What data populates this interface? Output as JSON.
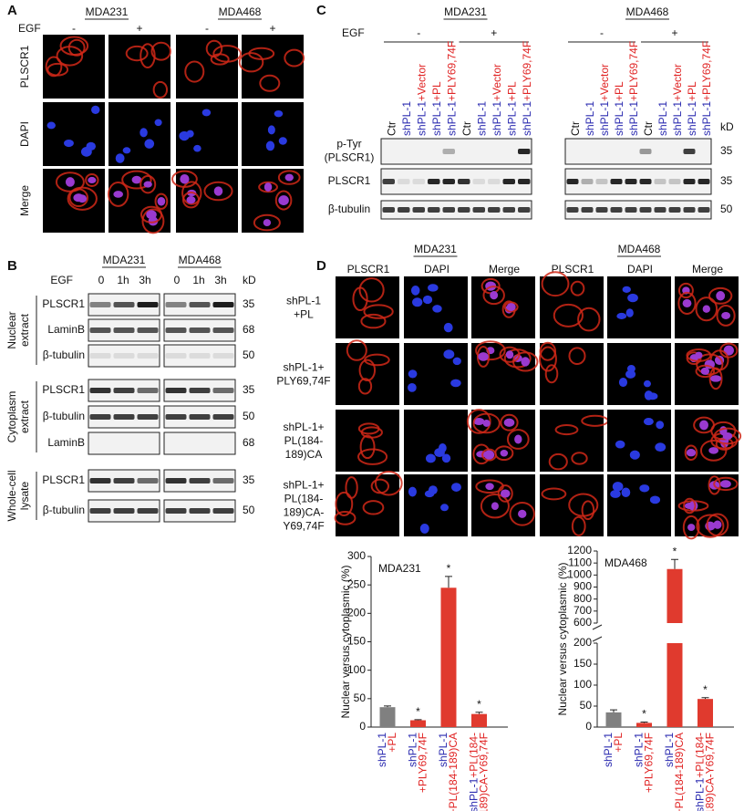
{
  "panel_labels": [
    "A",
    "B",
    "C",
    "D"
  ],
  "panel_a": {
    "cell_lines": [
      "MDA231",
      "MDA468"
    ],
    "egf": "EGF",
    "conditions": [
      "-",
      "+"
    ],
    "rows": [
      "PLSCR1",
      "DAPI",
      "Merge"
    ]
  },
  "panel_b": {
    "cell_lines": [
      "MDA231",
      "MDA468"
    ],
    "egf": "EGF",
    "times": [
      "0",
      "1h",
      "3h"
    ],
    "kd": "kD",
    "groups": [
      {
        "label": [
          "Nuclear",
          "extract"
        ],
        "rows": [
          {
            "name": "PLSCR1",
            "kd": 35
          },
          {
            "name": "LaminB",
            "kd": 68
          },
          {
            "name": "β-tubulin",
            "kd": 50
          }
        ]
      },
      {
        "label": [
          "Cytoplasm",
          "extract"
        ],
        "rows": [
          {
            "name": "PLSCR1",
            "kd": 35
          },
          {
            "name": "β-tubulin",
            "kd": 50
          },
          {
            "name": "LaminB",
            "kd": 68
          }
        ]
      },
      {
        "label": [
          "Whole-cell",
          "lysate"
        ],
        "rows": [
          {
            "name": "PLSCR1",
            "kd": 35
          },
          {
            "name": "β-tubulin",
            "kd": 50
          }
        ]
      }
    ]
  },
  "panel_c": {
    "cell_lines": [
      "MDA231",
      "MDA468"
    ],
    "egf": "EGF",
    "conditions": [
      "-",
      "+"
    ],
    "kd": "kD",
    "lanes": [
      [
        {
          "text": "Ctr",
          "color": "#111111"
        }
      ],
      [
        {
          "text": "shPL-1",
          "color": "#2b2bb0"
        }
      ],
      [
        {
          "text": "shPL-1",
          "color": "#2b2bb0"
        },
        {
          "text": "+Vector",
          "color": "#e02424"
        }
      ],
      [
        {
          "text": "shPL-1",
          "color": "#2b2bb0"
        },
        {
          "text": "+PL",
          "color": "#e02424"
        }
      ],
      [
        {
          "text": "shPL-1",
          "color": "#2b2bb0"
        },
        {
          "text": "+PLY69,74F",
          "color": "#e02424"
        }
      ]
    ],
    "rows": [
      {
        "name": [
          "p-Tyr",
          "(PLSCR1)"
        ],
        "kd": 35
      },
      {
        "name": [
          "PLSCR1"
        ],
        "kd": 35
      },
      {
        "name": [
          "β-tubulin"
        ],
        "kd": 50
      }
    ]
  },
  "panel_d": {
    "cell_lines": [
      "MDA231",
      "MDA468"
    ],
    "stains": [
      "PLSCR1",
      "DAPI",
      "Merge"
    ],
    "rows": [
      [
        "shPL-1",
        "+PL"
      ],
      [
        "shPL-1+",
        "PLY69,74F"
      ],
      [
        "shPL-1+",
        "PL(184-",
        "189)CA"
      ],
      [
        "shPL-1+",
        "PL(184-",
        "189)CA-",
        "Y69,74F"
      ]
    ]
  },
  "chart_data": [
    {
      "type": "bar",
      "title": "MDA231",
      "ylabel": "Nuclear versus cytoplasmic (%)",
      "categories": [
        [
          [
            {
              "text": "shPL-1",
              "color": "#2b2bb0"
            }
          ],
          [
            {
              "text": "+PL",
              "color": "#e02424"
            }
          ]
        ],
        [
          [
            {
              "text": "shPL-1",
              "color": "#2b2bb0"
            }
          ],
          [
            {
              "text": "+PLY69,74F",
              "color": "#e02424"
            }
          ]
        ],
        [
          [
            {
              "text": "shPL-1",
              "color": "#2b2bb0"
            }
          ],
          [
            {
              "text": "+PL(184-189)CA",
              "color": "#e02424"
            }
          ]
        ],
        [
          [
            {
              "text": "shPL-1",
              "color": "#2b2bb0"
            },
            {
              "text": "+PL(184-",
              "color": "#e02424"
            }
          ],
          [
            {
              "text": "189)CA-Y69,74F",
              "color": "#e02424"
            }
          ]
        ]
      ],
      "values": [
        35,
        12,
        245,
        23
      ],
      "errors": [
        2,
        1,
        20,
        3
      ],
      "colors": [
        "#808080",
        "#e03a2e",
        "#e03a2e",
        "#e03a2e"
      ],
      "ylim": [
        0,
        300
      ],
      "yticks": [
        0,
        50,
        100,
        150,
        200,
        250,
        300
      ],
      "significant": [
        false,
        true,
        true,
        true
      ],
      "significance_label": "*"
    },
    {
      "type": "bar",
      "title": "MDA468",
      "ylabel": "Nuclear versus cytoplasmic (%)",
      "categories": [
        [
          [
            {
              "text": "shPL-1",
              "color": "#2b2bb0"
            }
          ],
          [
            {
              "text": "+PL",
              "color": "#e02424"
            }
          ]
        ],
        [
          [
            {
              "text": "shPL-1",
              "color": "#2b2bb0"
            }
          ],
          [
            {
              "text": "+PLY69,74F",
              "color": "#e02424"
            }
          ]
        ],
        [
          [
            {
              "text": "shPL-1",
              "color": "#2b2bb0"
            }
          ],
          [
            {
              "text": "+PL(184-189)CA",
              "color": "#e02424"
            }
          ]
        ],
        [
          [
            {
              "text": "shPL-1",
              "color": "#2b2bb0"
            },
            {
              "text": "+PL(184-",
              "color": "#e02424"
            }
          ],
          [
            {
              "text": "189)CA-Y69,74F",
              "color": "#e02424"
            }
          ]
        ]
      ],
      "values": [
        35,
        10,
        1050,
        67
      ],
      "errors": [
        6,
        2,
        80,
        3
      ],
      "colors": [
        "#808080",
        "#e03a2e",
        "#e03a2e",
        "#e03a2e"
      ],
      "ylim": [
        0,
        1200
      ],
      "ybreak": [
        200,
        600
      ],
      "yticks": [
        0,
        50,
        100,
        150,
        200,
        600,
        700,
        800,
        900,
        1000,
        1100,
        1200
      ],
      "significant": [
        false,
        true,
        true,
        true
      ],
      "significance_label": "*"
    }
  ]
}
